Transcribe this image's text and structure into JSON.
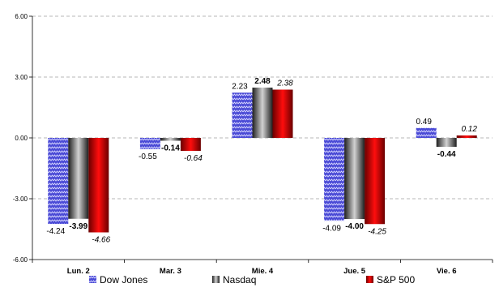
{
  "chart_data": {
    "type": "bar",
    "categories": [
      "Lun. 2",
      "Mar. 3",
      "Mie. 4",
      "Jue. 5",
      "Vie. 6"
    ],
    "series": [
      {
        "name": "Dow Jones",
        "values": [
          -4.24,
          -0.55,
          2.23,
          -4.09,
          0.49
        ],
        "labels": [
          "-4.24",
          "-0.55",
          "2.23",
          "-4.09",
          "0.49"
        ],
        "color": "#3333cc"
      },
      {
        "name": "Nasdaq",
        "values": [
          -3.99,
          -0.14,
          2.48,
          -4.0,
          -0.44
        ],
        "labels": [
          "-3.99",
          "-0.14",
          "2.48",
          "-4.00",
          "-0.44"
        ],
        "color": "#7a7a7a"
      },
      {
        "name": "S&P 500",
        "values": [
          -4.66,
          -0.64,
          2.38,
          -4.25,
          0.12
        ],
        "labels": [
          "-4.66",
          "-0.64",
          "2.38",
          "-4.25",
          "0.12"
        ],
        "color": "#cc0000"
      }
    ],
    "yticks": [
      "6.00",
      "3.00",
      "0.00",
      "-3.00",
      "-6.00"
    ],
    "ylim": [
      -6,
      6
    ],
    "grid": true,
    "legend_position": "bottom"
  }
}
